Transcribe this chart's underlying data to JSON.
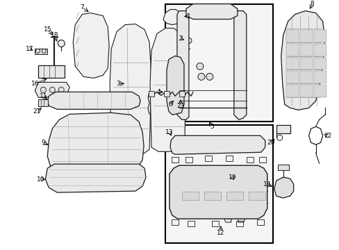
{
  "background_color": "#ffffff",
  "fig_width": 4.89,
  "fig_height": 3.6,
  "dpi": 100,
  "image_data": null
}
